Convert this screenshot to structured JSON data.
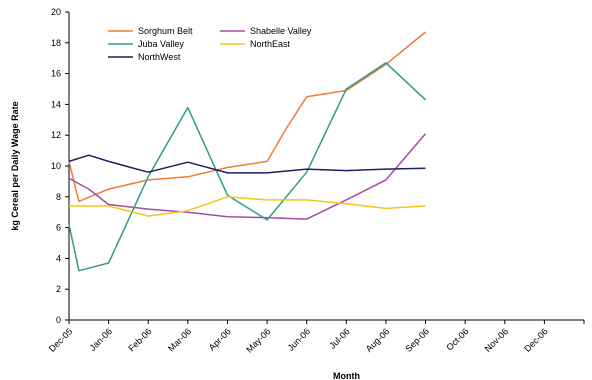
{
  "chart_data": {
    "type": "line",
    "title": "",
    "xlabel": "Month",
    "ylabel": "kg Cereal per Daily Wage Rate",
    "ylim": [
      0,
      20
    ],
    "ytick_step": 2,
    "grid": false,
    "legend_position": "top-left",
    "categories": [
      "Dec-05",
      "Jan-06",
      "Feb-06",
      "Mar-06",
      "Apr-06",
      "May-06",
      "Jun-06",
      "Jul-06",
      "Aug-06",
      "Sep-06",
      "Oct-06",
      "Nov-06",
      "Dec-06"
    ],
    "yticks": [
      "0",
      "2",
      "4",
      "6",
      "8",
      "10",
      "12",
      "14",
      "16",
      "18",
      "20"
    ],
    "series": [
      {
        "name": "Sorghum Belt",
        "color": "#ED7D31",
        "x": [
          0,
          0.25,
          1,
          2,
          3,
          4,
          5,
          5.5,
          6,
          7,
          8,
          9
        ],
        "values": [
          10.3,
          7.7,
          8.5,
          9.1,
          9.3,
          9.9,
          10.3,
          12.5,
          14.5,
          14.9,
          16.6,
          18.7
        ]
      },
      {
        "name": "Shabelle Valley",
        "color": "#A64CA6",
        "x": [
          0,
          0.5,
          1,
          2,
          3,
          4,
          5,
          6,
          7,
          8,
          9
        ],
        "values": [
          9.2,
          8.5,
          7.5,
          7.2,
          7.0,
          6.7,
          6.65,
          6.55,
          7.8,
          9.1,
          12.1
        ]
      },
      {
        "name": "Juba Valley",
        "color": "#2E9E8C",
        "x": [
          0,
          0.25,
          1,
          2,
          3,
          4,
          5,
          6,
          7,
          8,
          9
        ],
        "values": [
          6.2,
          3.2,
          3.7,
          9.3,
          13.8,
          8.1,
          6.5,
          9.6,
          15.0,
          16.7,
          14.3
        ]
      },
      {
        "name": "NorthEast",
        "color": "#F5C518",
        "x": [
          0,
          1,
          2,
          3,
          4,
          5,
          6,
          7,
          8,
          9
        ],
        "values": [
          7.4,
          7.4,
          6.75,
          7.1,
          8.0,
          7.8,
          7.8,
          7.55,
          7.25,
          7.4
        ]
      },
      {
        "name": "NorthWest",
        "color": "#1F1F5E",
        "x": [
          0,
          0.5,
          1,
          2,
          3,
          4,
          5,
          6,
          7,
          8,
          9
        ],
        "values": [
          10.3,
          10.7,
          10.3,
          9.6,
          10.25,
          9.55,
          9.55,
          9.8,
          9.7,
          9.8,
          9.85
        ]
      }
    ]
  }
}
